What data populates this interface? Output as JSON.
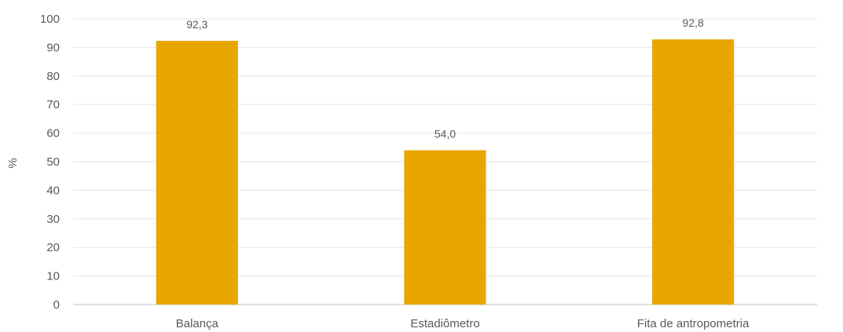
{
  "chart_data": {
    "type": "bar",
    "categories": [
      "Balança",
      "Estadiômetro",
      "Fita de antropometria"
    ],
    "values": [
      92.3,
      54.0,
      92.8
    ],
    "data_labels": [
      "92,3",
      "54,0",
      "92,8"
    ],
    "title": "",
    "xlabel": "",
    "ylabel": "%",
    "ylim": [
      0,
      100
    ],
    "yticks": [
      0,
      10,
      20,
      30,
      40,
      50,
      60,
      70,
      80,
      90,
      100
    ],
    "grid": true,
    "legend": "none",
    "bar_color": "#E8A600",
    "grid_color": "#E6E6E6",
    "axis_color": "#BFBFBF"
  }
}
